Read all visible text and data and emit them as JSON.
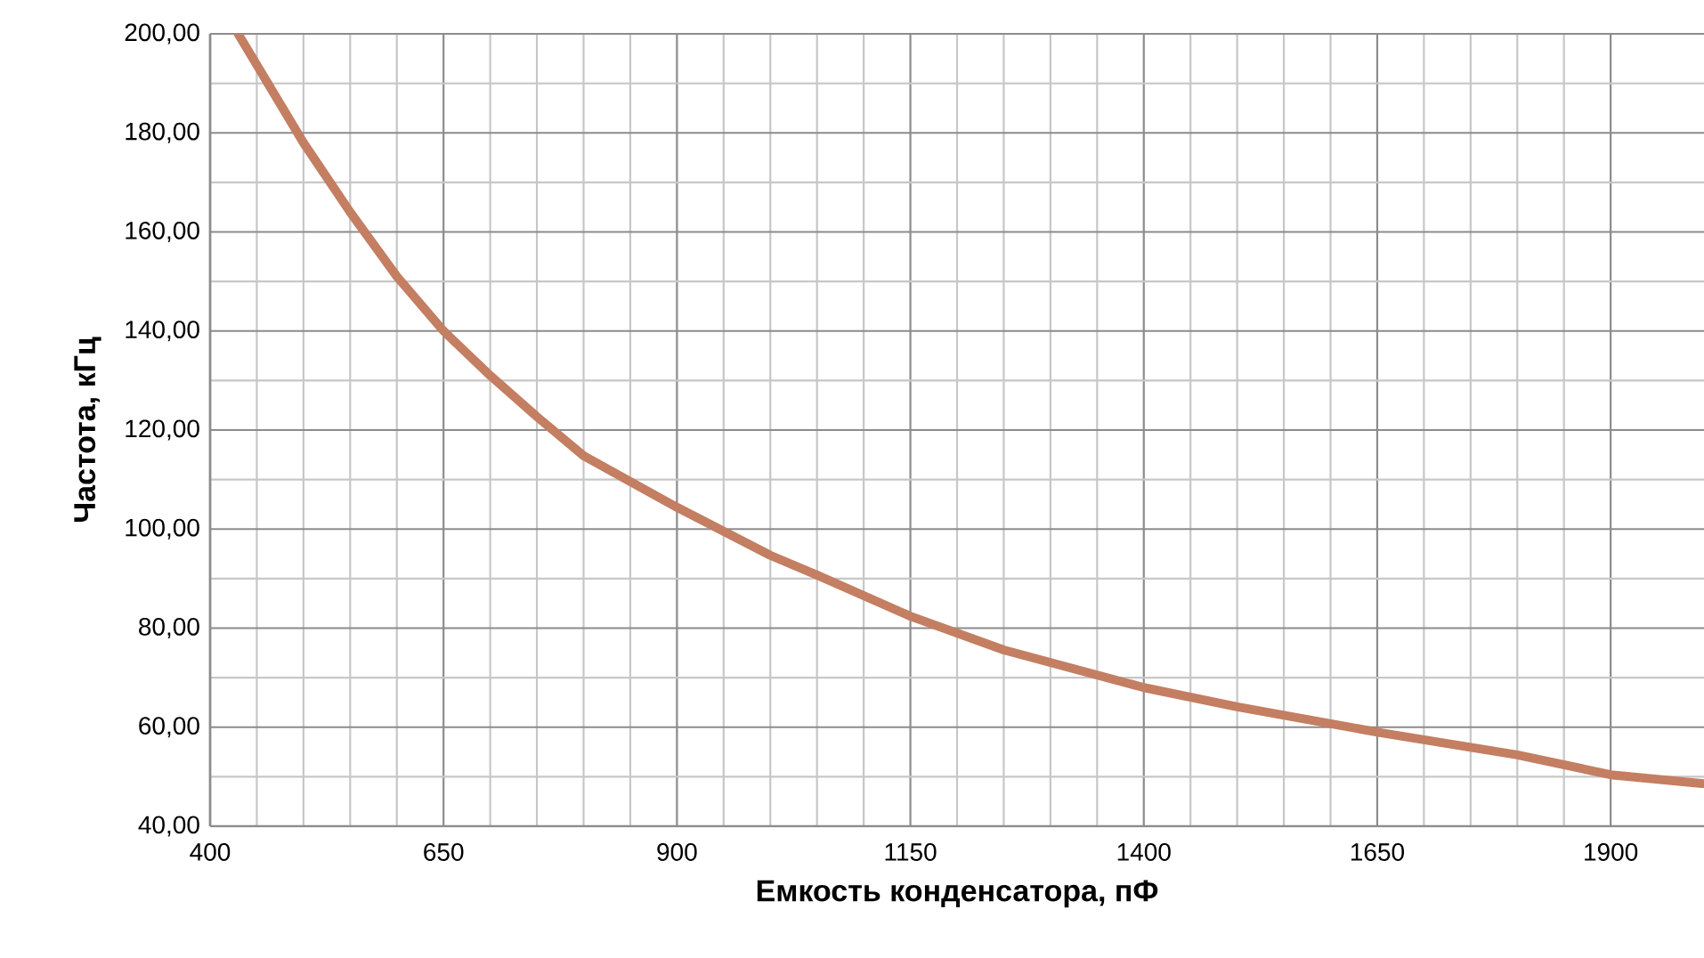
{
  "chart_data": {
    "type": "line",
    "xlabel": "Емкость конденсатора, пФ",
    "ylabel": "Частота, кГц",
    "x": [
      430,
      500,
      550,
      600,
      650,
      700,
      750,
      800,
      900,
      1000,
      1050,
      1150,
      1250,
      1400,
      1500,
      1650,
      1800,
      1900,
      2000
    ],
    "values": [
      200,
      178,
      164,
      151,
      140,
      131,
      122.7,
      114.8,
      104.4,
      94.7,
      90.7,
      82.4,
      75.6,
      68,
      64.1,
      59,
      54.4,
      50.4,
      48.6
    ],
    "color": "#c47e62",
    "xlim": [
      400,
      2000
    ],
    "ylim": [
      40,
      200
    ],
    "xticks": [
      400,
      650,
      900,
      1150,
      1400,
      1650,
      1900
    ],
    "yticks": [
      {
        "value": 40,
        "label": "40,00"
      },
      {
        "value": 60,
        "label": "60,00"
      },
      {
        "value": 80,
        "label": "80,00"
      },
      {
        "value": 100,
        "label": "100,00"
      },
      {
        "value": 120,
        "label": "120,00"
      },
      {
        "value": 140,
        "label": "140,00"
      },
      {
        "value": 160,
        "label": "160,00"
      },
      {
        "value": 180,
        "label": "180,00"
      },
      {
        "value": 200,
        "label": "200,00"
      }
    ],
    "grid": true,
    "marker": "none",
    "line_style": "solid"
  }
}
